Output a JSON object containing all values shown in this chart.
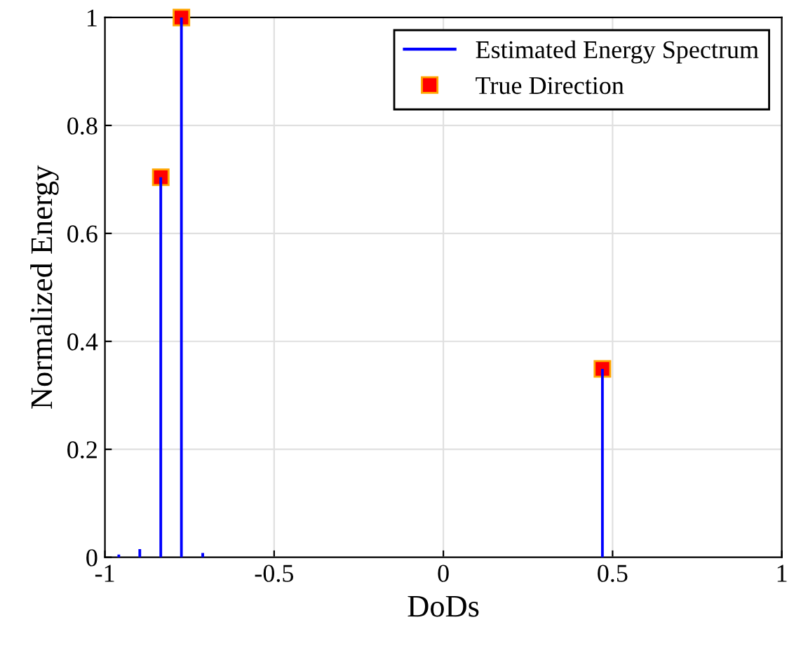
{
  "chart_data": {
    "type": "bar",
    "xlabel": "DoDs",
    "ylabel": "Normalized Energy",
    "xlim": [
      -1,
      1
    ],
    "ylim": [
      0,
      1
    ],
    "xticks": [
      -1,
      -0.5,
      0,
      0.5,
      1
    ],
    "yticks": [
      0,
      0.2,
      0.4,
      0.6,
      0.8,
      1
    ],
    "grid": true,
    "legend": "top right",
    "series": [
      {
        "name": "Estimated Energy Spectrum",
        "color": "#0000ff",
        "x": [
          -0.959,
          -0.897,
          -0.835,
          -0.774,
          -0.711,
          0.47
        ],
        "values": [
          0.005,
          0.015,
          0.704,
          1,
          0.008,
          0.349
        ]
      },
      {
        "name": "True Direction",
        "type": "scatter",
        "marker": "square",
        "color": "#ff0000",
        "x": [
          -0.835,
          -0.774,
          0.47
        ],
        "values": [
          0.704,
          1,
          0.349
        ]
      }
    ]
  }
}
